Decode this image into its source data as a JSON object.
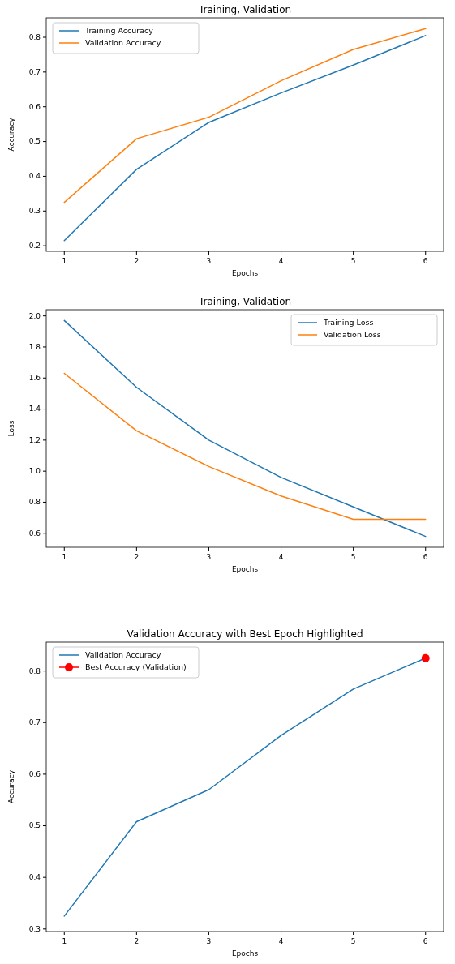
{
  "chart_data": [
    {
      "type": "line",
      "title": "Training, Validation",
      "xlabel": "Epochs",
      "ylabel": "Accuracy",
      "x": [
        1,
        2,
        3,
        4,
        5,
        6
      ],
      "xlim": [
        0.75,
        6.25
      ],
      "xticks": [
        1,
        2,
        3,
        4,
        5,
        6
      ],
      "ylim": [
        0.184,
        0.856
      ],
      "yticks": [
        0.2,
        0.3,
        0.4,
        0.5,
        0.6,
        0.7,
        0.8
      ],
      "legend": "top left",
      "series": [
        {
          "name": "Training Accuracy",
          "color": "#1f77b4",
          "values": [
            0.215,
            0.42,
            0.555,
            0.64,
            0.72,
            0.805
          ]
        },
        {
          "name": "Validation Accuracy",
          "color": "#ff7f0e",
          "values": [
            0.325,
            0.508,
            0.57,
            0.675,
            0.765,
            0.825
          ]
        }
      ]
    },
    {
      "type": "line",
      "title": "Training, Validation",
      "xlabel": "Epochs",
      "ylabel": "Loss",
      "x": [
        1,
        2,
        3,
        4,
        5,
        6
      ],
      "xlim": [
        0.75,
        6.25
      ],
      "xticks": [
        1,
        2,
        3,
        4,
        5,
        6
      ],
      "ylim": [
        0.51,
        2.04
      ],
      "yticks": [
        0.6,
        0.8,
        {
          "value": 1,
          "label": "1.0"
        },
        1.2,
        1.4,
        1.6,
        1.8,
        {
          "value": 2,
          "label": "2.0"
        }
      ],
      "legend": "top right",
      "series": [
        {
          "name": "Training Loss",
          "color": "#1f77b4",
          "values": [
            1.97,
            1.54,
            1.2,
            0.96,
            0.77,
            0.58
          ]
        },
        {
          "name": "Validation Loss",
          "color": "#ff7f0e",
          "values": [
            1.63,
            1.26,
            1.03,
            0.84,
            0.69,
            0.69
          ]
        }
      ]
    },
    {
      "type": "line",
      "title": "Validation Accuracy with Best Epoch Highlighted",
      "xlabel": "Epochs",
      "ylabel": "Accuracy",
      "x": [
        1,
        2,
        3,
        4,
        5,
        6
      ],
      "xlim": [
        0.75,
        6.25
      ],
      "xticks": [
        1,
        2,
        3,
        4,
        5,
        6
      ],
      "ylim": [
        0.295,
        0.856
      ],
      "yticks": [
        0.3,
        0.4,
        0.5,
        0.6,
        0.7,
        0.8
      ],
      "legend": "top left",
      "series": [
        {
          "name": "Validation Accuracy",
          "color": "#1f77b4",
          "values": [
            0.325,
            0.508,
            0.57,
            0.675,
            0.765,
            0.825
          ]
        },
        {
          "type": "scatter",
          "name": "Best Accuracy (Validation)",
          "color": "#ff0000",
          "marker": "circle",
          "x": [
            6
          ],
          "values": [
            0.825
          ]
        }
      ]
    }
  ]
}
